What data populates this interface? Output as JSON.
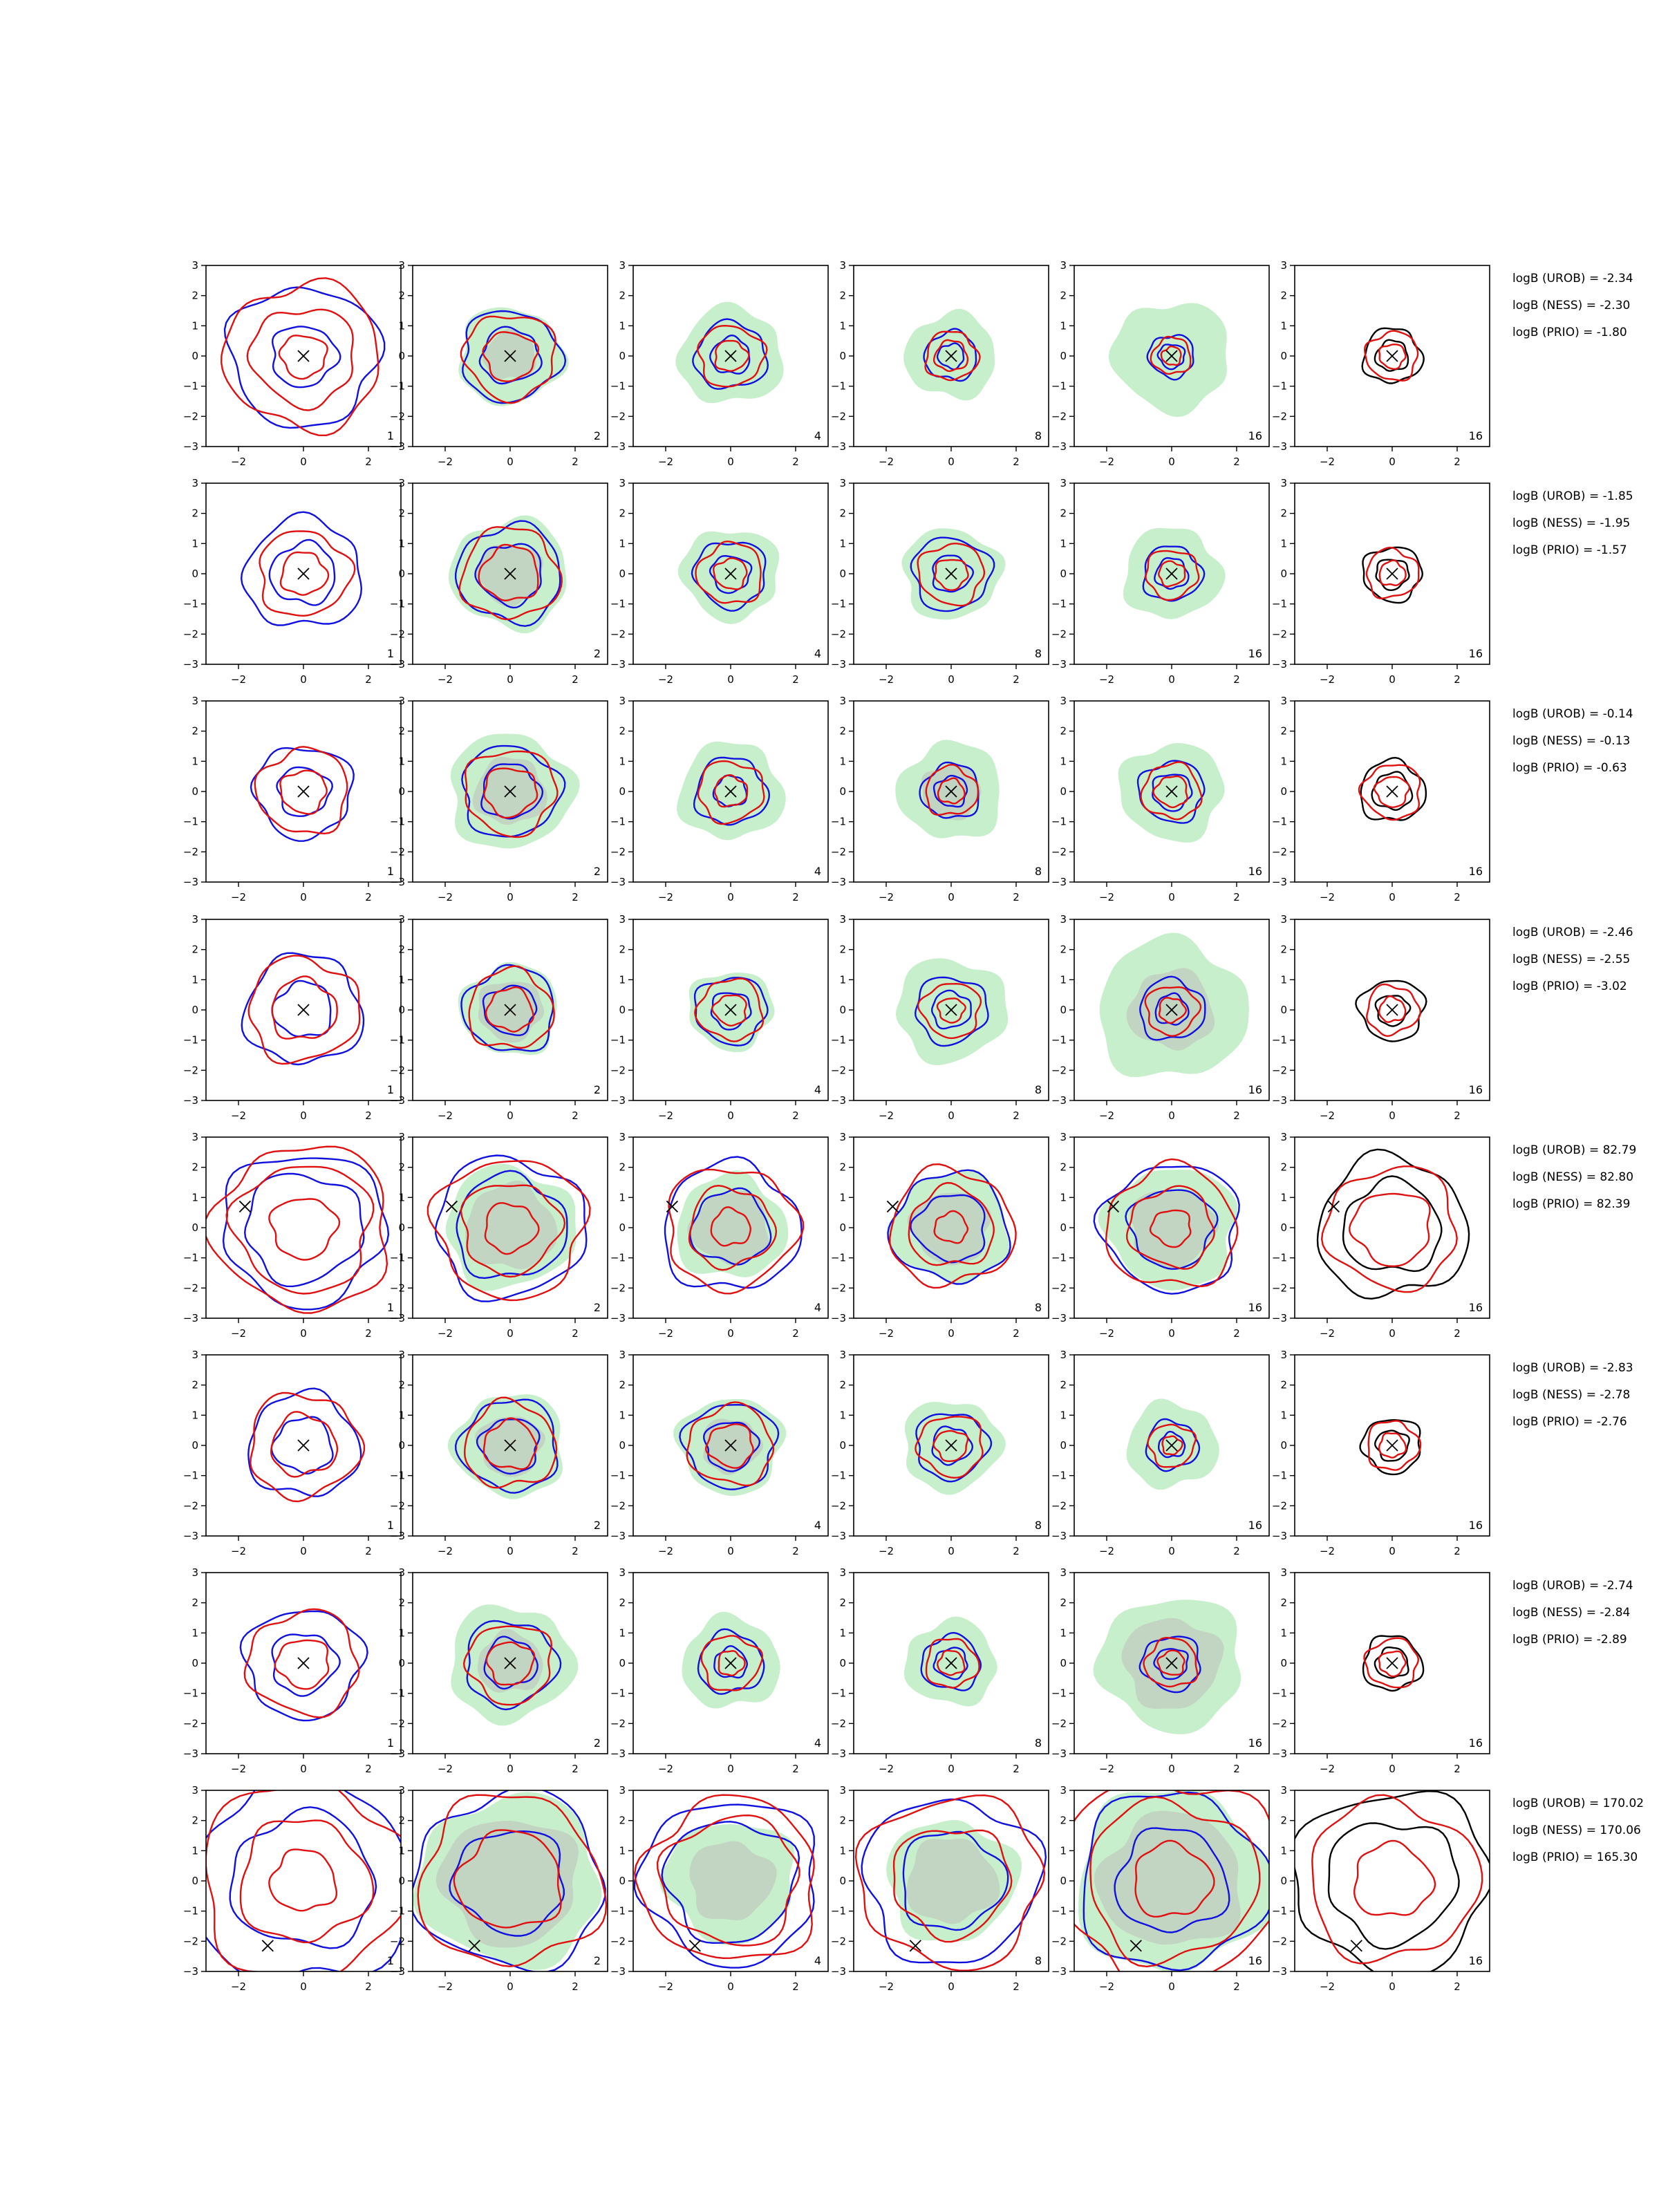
{
  "chart_data": {
    "type": "contour",
    "grid": {
      "rows": 8,
      "cols": 6
    },
    "axes": {
      "xlim": [
        -3,
        3
      ],
      "ylim": [
        -3,
        3
      ],
      "xticks": [
        -2,
        0,
        2
      ],
      "yticks": [
        3,
        2,
        1,
        0,
        -1,
        -2,
        -3
      ],
      "xtick_labels": [
        "−2",
        "0",
        "2"
      ],
      "ytick_labels": [
        "3",
        "2",
        "1",
        "0",
        "−1",
        "−2",
        "−3"
      ]
    },
    "panel_labels": [
      "1",
      "2",
      "4",
      "8",
      "16",
      "16"
    ],
    "series_colors": {
      "urob": "#1010e0",
      "ness": "#e01010",
      "prio": "#000000",
      "fill_outer": "#c8efcb",
      "fill_inner": "#c2d4c2"
    },
    "rows": [
      {
        "row": 1,
        "marker": [
          0,
          0
        ],
        "logB": [
          "logB (UROB) = -2.34",
          "logB (NESS) = -2.30",
          "logB (PRIO) = -1.80"
        ],
        "scales": [
          {
            "blue": [
              2.3,
              1.0
            ],
            "red": [
              2.4,
              1.6,
              0.7
            ]
          },
          {
            "green": 1.6,
            "inner": 0.8,
            "blue": [
              1.5,
              0.9
            ],
            "red": [
              1.4,
              0.8
            ]
          },
          {
            "green": 1.6,
            "inner": 0.0,
            "blue": [
              1.1,
              0.6
            ],
            "red": [
              1.0,
              0.5
            ]
          },
          {
            "green": 1.4,
            "inner": 0.0,
            "blue": [
              0.8,
              0.4
            ],
            "red": [
              0.8,
              0.5
            ]
          },
          {
            "green": 1.8,
            "inner": 0.0,
            "blue": [
              0.7,
              0.4
            ],
            "red": [
              0.6,
              0.3
            ]
          },
          {
            "black": [
              0.9,
              0.5
            ],
            "red": [
              0.8,
              0.4
            ]
          }
        ]
      },
      {
        "row": 2,
        "marker": [
          0,
          0
        ],
        "logB": [
          "logB (UROB) = -1.85",
          "logB (NESS) = -1.95",
          "logB (PRIO) = -1.57"
        ],
        "scales": [
          {
            "blue": [
              1.8,
              1.0
            ],
            "red": [
              1.4,
              0.7
            ]
          },
          {
            "green": 1.8,
            "inner": 1.0,
            "blue": [
              1.6,
              1.0
            ],
            "red": [
              1.5,
              0.9
            ]
          },
          {
            "green": 1.5,
            "inner": 0.0,
            "blue": [
              1.1,
              0.6
            ],
            "red": [
              1.0,
              0.5
            ]
          },
          {
            "green": 1.5,
            "inner": 0.0,
            "blue": [
              1.2,
              0.6
            ],
            "red": [
              1.0,
              0.5
            ]
          },
          {
            "green": 1.5,
            "inner": 0.0,
            "blue": [
              0.9,
              0.5
            ],
            "red": [
              0.8,
              0.4
            ]
          },
          {
            "black": [
              0.9,
              0.5
            ],
            "red": [
              0.8,
              0.4
            ]
          }
        ]
      },
      {
        "row": 3,
        "marker": [
          0,
          0
        ],
        "logB": [
          "logB (UROB) = -0.14",
          "logB (NESS) = -0.13",
          "logB (PRIO) = -0.63"
        ],
        "scales": [
          {
            "blue": [
              1.5,
              0.8
            ],
            "red": [
              1.4,
              0.7
            ]
          },
          {
            "green": 1.9,
            "inner": 1.1,
            "blue": [
              1.5,
              0.9
            ],
            "red": [
              1.4,
              0.8
            ]
          },
          {
            "green": 1.6,
            "inner": 0.0,
            "blue": [
              1.1,
              0.5
            ],
            "red": [
              1.0,
              0.5
            ]
          },
          {
            "green": 1.6,
            "inner": 0.9,
            "blue": [
              0.9,
              0.5
            ],
            "red": [
              0.8,
              0.4
            ]
          },
          {
            "green": 1.6,
            "inner": 0.0,
            "blue": [
              1.0,
              0.6
            ],
            "red": [
              0.9,
              0.5
            ]
          },
          {
            "black": [
              1.0,
              0.6
            ],
            "red": [
              0.9,
              0.5
            ]
          }
        ]
      },
      {
        "row": 4,
        "marker": [
          0,
          0
        ],
        "logB": [
          "logB (UROB) = -2.46",
          "logB (NESS) = -2.55",
          "logB (PRIO) = -3.02"
        ],
        "scales": [
          {
            "blue": [
              1.8,
              0.9
            ],
            "red": [
              1.7,
              1.0
            ]
          },
          {
            "green": 1.5,
            "inner": 1.0,
            "blue": [
              1.4,
              0.8
            ],
            "red": [
              1.3,
              0.7
            ]
          },
          {
            "green": 1.3,
            "inner": 0.0,
            "blue": [
              1.1,
              0.6
            ],
            "red": [
              1.0,
              0.5
            ]
          },
          {
            "green": 1.7,
            "inner": 0.0,
            "blue": [
              1.1,
              0.6
            ],
            "red": [
              0.9,
              0.4
            ]
          },
          {
            "green": 2.3,
            "inner": 1.3,
            "blue": [
              1.0,
              0.5
            ],
            "red": [
              0.8,
              0.4
            ]
          },
          {
            "black": [
              1.0,
              0.5
            ],
            "red": [
              0.8,
              0.4
            ]
          }
        ]
      },
      {
        "row": 5,
        "marker": [
          -1.8,
          0.7
        ],
        "logB": [
          "logB (UROB) = 82.79",
          "logB (NESS) = 82.80",
          "logB (PRIO) = 82.39"
        ],
        "scales": [
          {
            "blue": [
              2.5,
              1.8
            ],
            "red": [
              2.7,
              2.1,
              1.0
            ]
          },
          {
            "green": 2.0,
            "inner": 1.4,
            "blue": [
              2.3,
              1.7
            ],
            "red": [
              2.3,
              1.5,
              0.8
            ]
          },
          {
            "green": 1.7,
            "inner": 1.2,
            "blue": [
              2.1,
              1.2
            ],
            "red": [
              2.0,
              1.3,
              0.6
            ]
          },
          {
            "green": 1.8,
            "inner": 1.2,
            "blue": [
              1.8,
              1.1
            ],
            "red": [
              1.9,
              1.3,
              0.5
            ]
          },
          {
            "green": 2.0,
            "inner": 1.3,
            "blue": [
              2.1,
              1.3
            ],
            "red": [
              2.0,
              1.3,
              0.6
            ]
          },
          {
            "black": [
              2.3,
              1.5
            ],
            "red": [
              2.0,
              1.2
            ]
          }
        ]
      },
      {
        "row": 6,
        "marker": [
          0,
          0
        ],
        "logB": [
          "logB (UROB) = -2.83",
          "logB (NESS) = -2.78",
          "logB (PRIO) = -2.76"
        ],
        "scales": [
          {
            "blue": [
              1.7,
              0.9
            ],
            "red": [
              1.7,
              1.0
            ]
          },
          {
            "green": 1.7,
            "inner": 1.0,
            "blue": [
              1.5,
              0.9
            ],
            "red": [
              1.4,
              0.8
            ]
          },
          {
            "green": 1.6,
            "inner": 0.9,
            "blue": [
              1.4,
              0.8
            ],
            "red": [
              1.3,
              0.7
            ]
          },
          {
            "green": 1.5,
            "inner": 0.0,
            "blue": [
              1.1,
              0.6
            ],
            "red": [
              1.0,
              0.5
            ]
          },
          {
            "green": 1.4,
            "inner": 0.0,
            "blue": [
              0.8,
              0.4
            ],
            "red": [
              0.7,
              0.3
            ]
          },
          {
            "black": [
              0.9,
              0.5
            ],
            "red": [
              0.8,
              0.4
            ]
          }
        ]
      },
      {
        "row": 7,
        "marker": [
          0,
          0
        ],
        "logB": [
          "logB (UROB) = -2.74",
          "logB (NESS) = -2.84",
          "logB (PRIO) = -2.89"
        ],
        "scales": [
          {
            "blue": [
              1.8,
              1.0
            ],
            "red": [
              1.7,
              0.8
            ]
          },
          {
            "green": 1.9,
            "inner": 1.0,
            "blue": [
              1.4,
              0.8
            ],
            "red": [
              1.3,
              0.7
            ]
          },
          {
            "green": 1.5,
            "inner": 0.0,
            "blue": [
              1.0,
              0.5
            ],
            "red": [
              0.9,
              0.4
            ]
          },
          {
            "green": 1.4,
            "inner": 0.0,
            "blue": [
              0.9,
              0.5
            ],
            "red": [
              0.8,
              0.4
            ]
          },
          {
            "green": 2.2,
            "inner": 1.5,
            "blue": [
              0.9,
              0.5
            ],
            "red": [
              0.8,
              0.4
            ]
          },
          {
            "black": [
              0.9,
              0.5
            ],
            "red": [
              0.8,
              0.4
            ]
          }
        ]
      },
      {
        "row": 8,
        "marker": [
          -1.1,
          -2.15
        ],
        "logB": [
          "logB (UROB) = 170.02",
          "logB (NESS) = 170.06",
          "logB (PRIO) = 165.30"
        ],
        "scales": [
          {
            "blue": [
              3.4,
              2.2
            ],
            "red": [
              3.2,
              2.0,
              1.0
            ]
          },
          {
            "green": 2.8,
            "inner": 2.1,
            "blue": [
              2.9,
              1.7
            ],
            "red": [
              2.8,
              1.6
            ]
          },
          {
            "green": 2.0,
            "inner": 1.3,
            "blue": [
              2.7,
              2.0
            ],
            "red": [
              2.7,
              2.1
            ]
          },
          {
            "green": 2.0,
            "inner": 1.4,
            "blue": [
              2.7,
              1.6
            ],
            "red": [
              2.8,
              1.8
            ]
          },
          {
            "green": 3.0,
            "inner": 2.2,
            "blue": [
              2.9,
              1.7
            ],
            "red": [
              3.4,
              2.6,
              1.2
            ]
          },
          {
            "black": [
              3.0,
              2.0
            ],
            "red": [
              2.6,
              1.2
            ]
          }
        ]
      }
    ]
  }
}
